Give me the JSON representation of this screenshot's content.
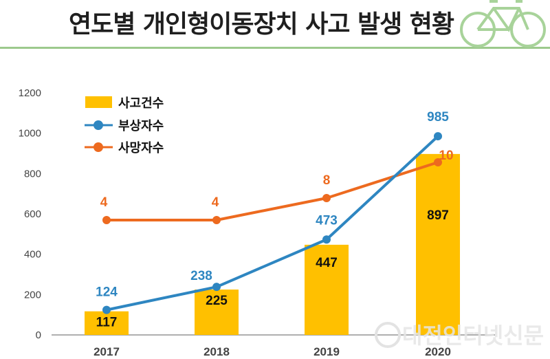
{
  "header": {
    "title": "연도별  개인형이동장치 사고 발생 현황",
    "decoration_icon": "bicycle-icon"
  },
  "watermark": {
    "text": "대전인터넷신문",
    "icon": "globe-logo-icon"
  },
  "colors": {
    "bar": "#FFC000",
    "injured": "#2E86C1",
    "deaths": "#ED6A1F",
    "axis": "#7f7f7f",
    "accent_green": "#9cc98c"
  },
  "chart_data": {
    "type": "bar",
    "title": "연도별 개인형이동장치 사고 발생 현황",
    "xlabel": "",
    "ylabel": "",
    "categories": [
      "2017",
      "2018",
      "2019",
      "2020"
    ],
    "ylim": [
      0,
      1200
    ],
    "yticks": [
      0,
      200,
      400,
      600,
      800,
      1000,
      1200
    ],
    "grid": false,
    "legend_position": "top-left",
    "series": [
      {
        "name": "사고건수",
        "kind": "bar",
        "values": [
          117,
          225,
          447,
          897
        ]
      },
      {
        "name": "부상자수",
        "kind": "line",
        "axis": "primary",
        "values": [
          124,
          238,
          473,
          985
        ]
      },
      {
        "name": "사망자수",
        "kind": "line",
        "axis": "secondary",
        "values": [
          4,
          4,
          8,
          10
        ]
      }
    ]
  }
}
